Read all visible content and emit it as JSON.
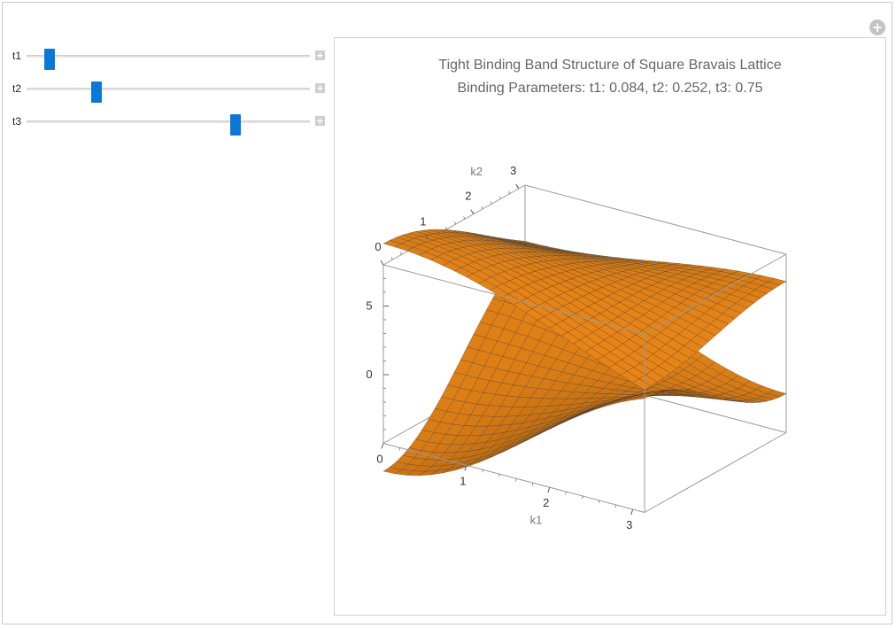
{
  "controls": {
    "sliders": [
      {
        "label": "t1",
        "value": 0.084,
        "min": 0,
        "max": 1
      },
      {
        "label": "t2",
        "value": 0.252,
        "min": 0,
        "max": 1
      },
      {
        "label": "t3",
        "value": 0.75,
        "min": 0,
        "max": 1
      }
    ],
    "plus_glyph": "+",
    "add_glyph": "+"
  },
  "plot": {
    "title_line1": "Tight Binding Band Structure of Square Bravais Lattice",
    "title_line2": "Binding Parameters: t1: 0.084, t2: 0.252, t3: 0.75"
  },
  "chart_data": {
    "type": "surface3d",
    "xlabel": "k1",
    "ylabel": "k2",
    "x_ticks": [
      "0",
      "1",
      "2",
      "3"
    ],
    "y_ticks": [
      "0",
      "1",
      "2",
      "3"
    ],
    "z_ticks": [
      "5",
      "0"
    ],
    "xlim": [
      0,
      3.14159
    ],
    "ylim": [
      0,
      3.14159
    ],
    "surface_color": "#f28c1a",
    "mesh_color": "#333333",
    "bands": 2
  }
}
